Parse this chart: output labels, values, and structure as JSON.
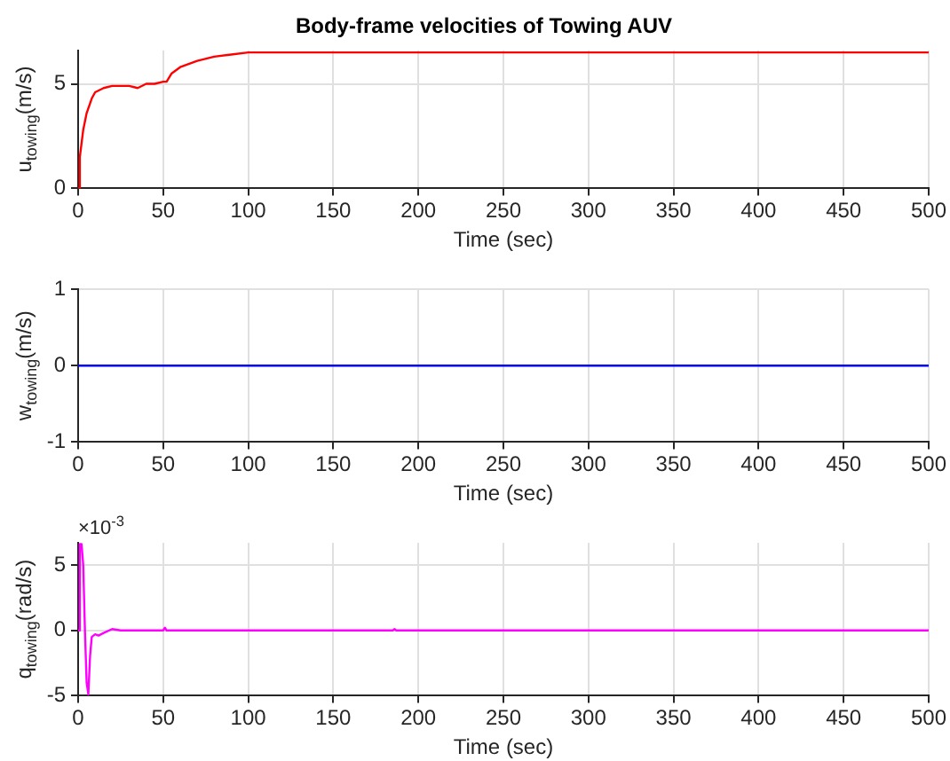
{
  "chart_data": [
    {
      "type": "line",
      "title": "Body-frame velocities of Towing AUV",
      "xlabel": "Time (sec)",
      "ylabel": "u$_{towing}$(m/s)",
      "grid": true,
      "marker": "none",
      "line_style": "solid",
      "legend": false,
      "xlim": [
        0,
        500
      ],
      "xticks": [
        0,
        50,
        100,
        150,
        200,
        250,
        300,
        350,
        400,
        450,
        500
      ],
      "ylim": [
        0,
        6.6
      ],
      "yticks": [
        0,
        5
      ],
      "series": [
        {
          "color": "#ff0000",
          "x": [
            0,
            1,
            3,
            5,
            8,
            10,
            15,
            20,
            25,
            30,
            35,
            40,
            45,
            50,
            52,
            55,
            60,
            70,
            80,
            90,
            100,
            110,
            120,
            130,
            140,
            150,
            160,
            170,
            180,
            200,
            220,
            240,
            260,
            280,
            300,
            320,
            340,
            360,
            380,
            400,
            420,
            440,
            460,
            480,
            500
          ],
          "values": [
            0,
            1.5,
            2.8,
            3.6,
            4.3,
            4.6,
            4.8,
            4.9,
            4.9,
            4.9,
            4.8,
            5.0,
            5.0,
            5.1,
            5.1,
            5.5,
            5.8,
            6.1,
            6.3,
            6.4,
            6.5,
            6.5,
            6.5,
            6.5,
            6.5,
            6.5,
            6.5,
            6.5,
            6.5,
            6.5,
            6.5,
            6.5,
            6.5,
            6.5,
            6.5,
            6.5,
            6.5,
            6.5,
            6.5,
            6.5,
            6.5,
            6.5,
            6.5,
            6.5,
            6.5
          ]
        }
      ]
    },
    {
      "type": "line",
      "xlabel": "Time (sec)",
      "ylabel": "w$_{towing}$(m/s)",
      "grid": true,
      "marker": "none",
      "line_style": "solid",
      "legend": false,
      "xlim": [
        0,
        500
      ],
      "xticks": [
        0,
        50,
        100,
        150,
        200,
        250,
        300,
        350,
        400,
        450,
        500
      ],
      "ylim": [
        -1,
        1
      ],
      "yticks": [
        -1,
        0,
        1
      ],
      "series": [
        {
          "color": "#0000ff",
          "x": [
            0,
            500
          ],
          "values": [
            0,
            0
          ]
        }
      ]
    },
    {
      "type": "line",
      "xlabel": "Time (sec)",
      "ylabel": "q$_{towing}$(rad/s)",
      "annotations": [
        "×10$^{-3}$"
      ],
      "grid": true,
      "marker": "none",
      "line_style": "solid",
      "legend": false,
      "xlim": [
        0,
        500
      ],
      "xticks": [
        0,
        50,
        100,
        150,
        200,
        250,
        300,
        350,
        400,
        450,
        500
      ],
      "ylim": [
        -5,
        6.7
      ],
      "yticks": [
        {
          "value": -5,
          "label": "-5"
        },
        0,
        5
      ],
      "series": [
        {
          "color": "#ff00ff",
          "x": [
            0,
            1,
            2,
            3,
            4,
            5,
            6,
            7,
            8,
            10,
            12,
            15,
            20,
            25,
            50,
            51,
            52,
            100,
            185,
            186,
            187,
            200,
            500
          ],
          "values": [
            0,
            6.6,
            6.6,
            5,
            0,
            -4,
            -4.9,
            -2,
            -0.5,
            -0.3,
            -0.4,
            -0.2,
            0.1,
            0,
            0,
            0.2,
            0,
            0,
            0,
            0.1,
            0,
            0,
            0
          ]
        }
      ]
    }
  ]
}
